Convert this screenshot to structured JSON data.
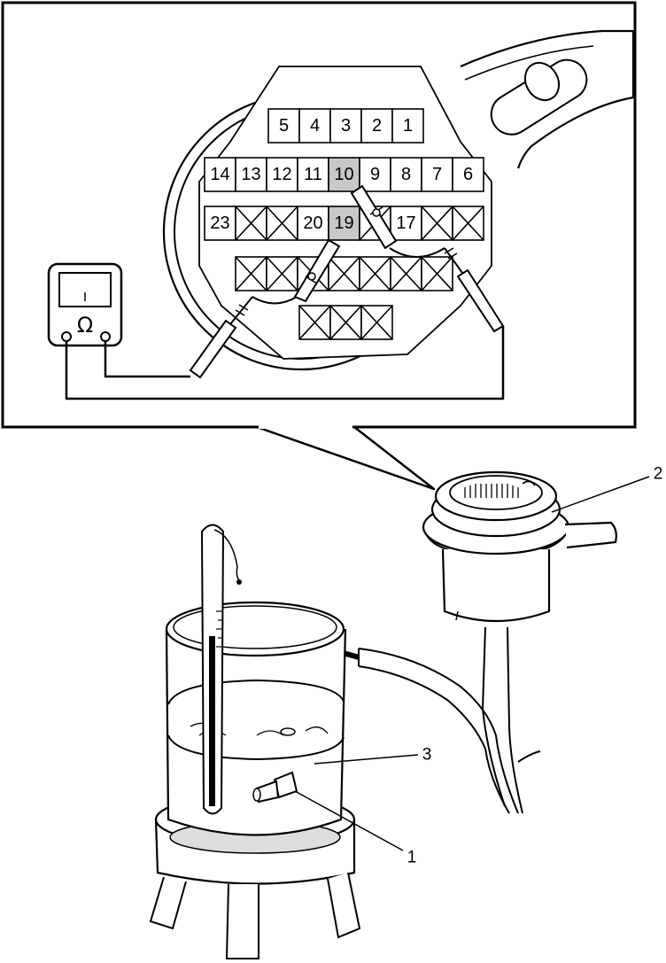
{
  "connector": {
    "row1": [
      "5",
      "4",
      "3",
      "2",
      "1"
    ],
    "row2": [
      "14",
      "13",
      "12",
      "11",
      "10",
      "9",
      "8",
      "7",
      "6"
    ],
    "row3": [
      "23",
      "",
      "",
      "20",
      "19",
      "",
      "17",
      "",
      ""
    ],
    "highlighted_pins": [
      "10",
      "19"
    ]
  },
  "meter": {
    "symbol": "Ω"
  },
  "callouts": [
    "1",
    "2",
    "3"
  ],
  "colors": {
    "line": "#000000",
    "highlight": "#c8c8c8",
    "background": "#ffffff"
  }
}
